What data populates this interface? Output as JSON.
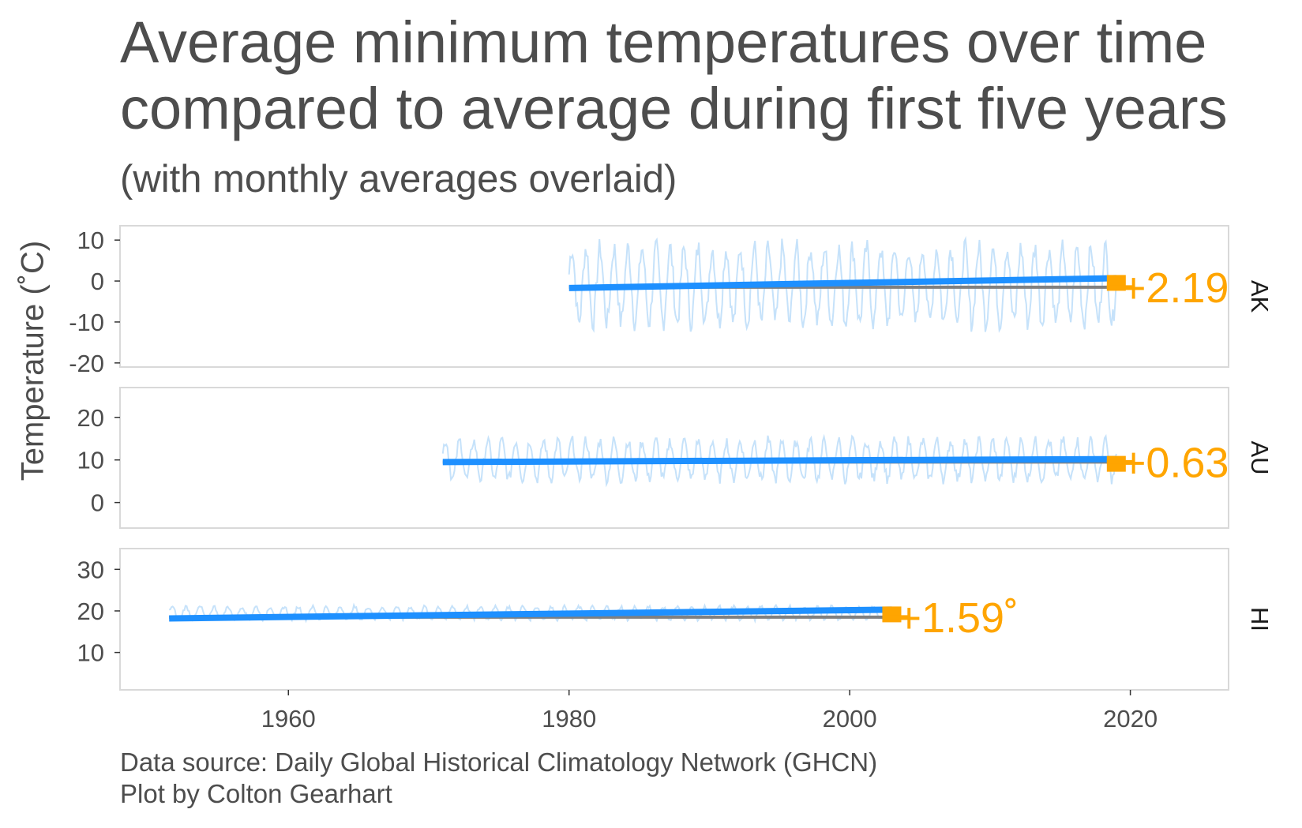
{
  "title_line1": "Average minimum temperatures over time",
  "title_line2": "compared to average during first five years",
  "subtitle": "(with monthly averages overlaid)",
  "ylabel": "Temperature (˚C)",
  "caption_line1": "Data source: Daily Global Historical Climatology Network (GHCN)",
  "caption_line2": "Plot by Colton Gearhart",
  "colors": {
    "monthly": "#c6e2fa",
    "trend": "#1e90ff",
    "baseline": "#808080",
    "label": "#ffa500",
    "text": "#4d4d4d",
    "panel_border": "#d9d9d9"
  },
  "chart_data": {
    "type": "line",
    "x_ticks": [
      1960,
      1980,
      2000,
      2020
    ],
    "xlim": [
      1948,
      2027
    ],
    "panels": [
      {
        "name": "AK",
        "ylim": [
          -21,
          13.5
        ],
        "y_ticks": [
          10,
          0,
          -10,
          -20
        ],
        "start_year": 1980,
        "end_year": 2019,
        "baseline": -1.5,
        "trend_start": -1.7,
        "trend_end": 0.7,
        "monthly_mean": -1.0,
        "monthly_amplitude": 9,
        "label": "+2.19"
      },
      {
        "name": "AU",
        "ylim": [
          -6,
          27
        ],
        "y_ticks": [
          20,
          10,
          0
        ],
        "start_year": 1971,
        "end_year": 2019,
        "baseline": 9.5,
        "trend_start": 9.5,
        "trend_end": 10.2,
        "monthly_mean": 10,
        "monthly_amplitude": 4.5,
        "label": "+0.63"
      },
      {
        "name": "HI",
        "ylim": [
          1,
          35
        ],
        "y_ticks": [
          30,
          20,
          10
        ],
        "start_year": 1951.5,
        "end_year": 2003,
        "baseline": 18.5,
        "trend_start": 18.2,
        "trend_end": 20.3,
        "monthly_mean": 19.5,
        "monthly_amplitude": 1.5,
        "label": "+1.59˚"
      }
    ]
  }
}
